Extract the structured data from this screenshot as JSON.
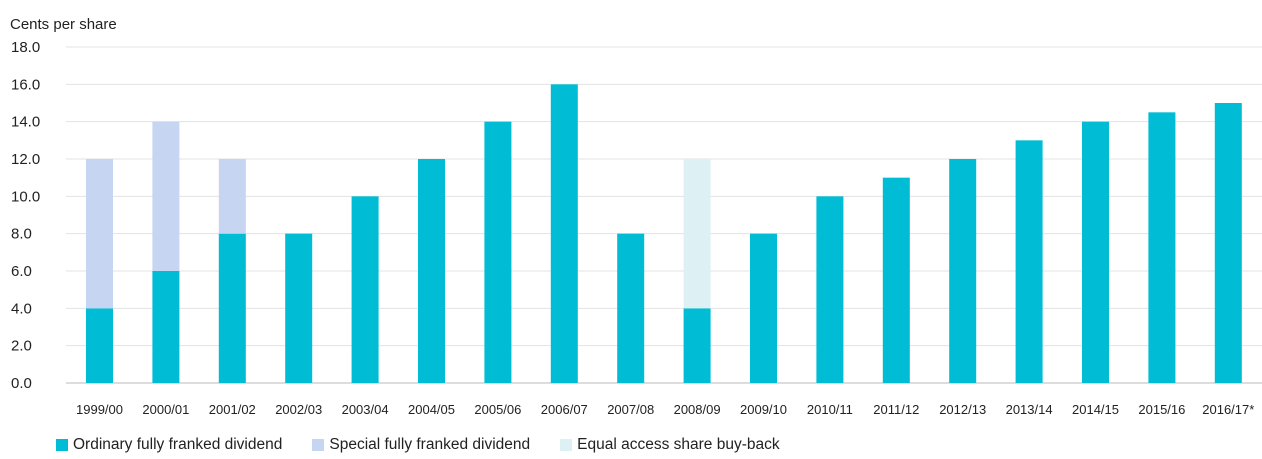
{
  "chart_data": {
    "type": "bar",
    "stacked": true,
    "ylabel": "Cents per share",
    "ylim": [
      0,
      18
    ],
    "yticks": [
      "0.0",
      "2.0",
      "4.0",
      "6.0",
      "8.0",
      "10.0",
      "12.0",
      "14.0",
      "16.0",
      "18.0"
    ],
    "grid": true,
    "legend_position": "bottom-left",
    "categories": [
      "1999/00",
      "2000/01",
      "2001/02",
      "2002/03",
      "2003/04",
      "2004/05",
      "2005/06",
      "2006/07",
      "2007/08",
      "2008/09",
      "2009/10",
      "2010/11",
      "2011/12",
      "2012/13",
      "2013/14",
      "2014/15",
      "2015/16",
      "2016/17*"
    ],
    "series": [
      {
        "name": "Ordinary fully franked dividend",
        "color": "#00BCD4",
        "values": [
          4,
          6,
          8,
          8,
          10,
          12,
          14,
          16,
          8,
          4,
          8,
          10,
          11,
          12,
          13,
          14,
          14.5,
          15
        ]
      },
      {
        "name": "Special fully franked dividend",
        "color": "#C5D5F2",
        "values": [
          8,
          8,
          4,
          0,
          0,
          0,
          0,
          0,
          0,
          0,
          0,
          0,
          0,
          0,
          0,
          0,
          0,
          0
        ]
      },
      {
        "name": "Equal access share buy-back",
        "color": "#DDF1F5",
        "values": [
          0,
          0,
          0,
          0,
          0,
          0,
          0,
          0,
          0,
          8,
          0,
          0,
          0,
          0,
          0,
          0,
          0,
          0
        ]
      }
    ]
  }
}
